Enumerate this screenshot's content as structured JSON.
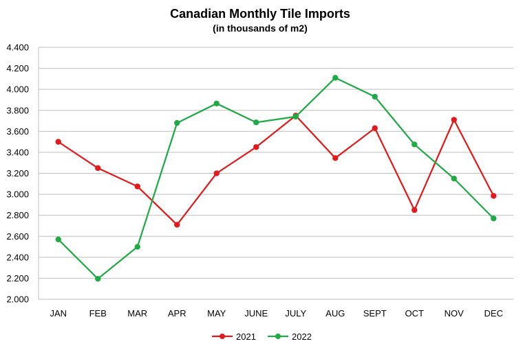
{
  "chart_data": {
    "type": "line",
    "title": "Canadian Monthly Tile Imports",
    "subtitle": "(in thousands of m2)",
    "categories": [
      "JAN",
      "FEB",
      "MAR",
      "APR",
      "MAY",
      "JUNE",
      "JULY",
      "AUG",
      "SEPT",
      "OCT",
      "NOV",
      "DEC"
    ],
    "series": [
      {
        "name": "2021",
        "color": "#e31a1c",
        "values": [
          3500,
          3250,
          3075,
          2710,
          3200,
          3450,
          3750,
          3345,
          3630,
          2850,
          3710,
          2985
        ]
      },
      {
        "name": "2022",
        "color": "#1faa45",
        "values": [
          2570,
          2195,
          2500,
          3680,
          3865,
          3685,
          3740,
          4110,
          3930,
          3475,
          3150,
          2770
        ]
      }
    ],
    "ylim": [
      2000,
      4400
    ],
    "yticks": [
      "2.000",
      "2.200",
      "2.400",
      "2.600",
      "2.800",
      "3.000",
      "3.200",
      "3.400",
      "3.600",
      "3.800",
      "4.000",
      "4.200",
      "4.400"
    ],
    "ytick_values": [
      2000,
      2200,
      2400,
      2600,
      2800,
      3000,
      3200,
      3400,
      3600,
      3800,
      4000,
      4200,
      4400
    ],
    "grid": true,
    "legend": "bottom-center"
  }
}
